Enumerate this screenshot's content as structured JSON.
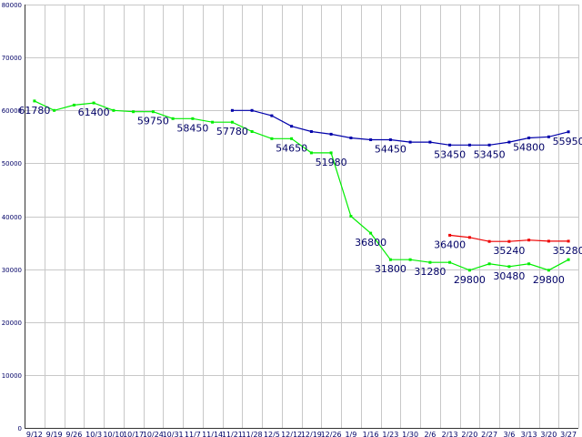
{
  "chart_data": {
    "type": "line",
    "title": "",
    "xlabel": "",
    "ylabel": "",
    "ylim": [
      0,
      80000
    ],
    "yticks": [
      0,
      10000,
      20000,
      30000,
      40000,
      50000,
      60000,
      70000,
      80000
    ],
    "grid": true,
    "categories": [
      "9/12",
      "9/19",
      "9/26",
      "10/3",
      "10/10",
      "10/17",
      "10/24",
      "10/31",
      "11/7",
      "11/14",
      "11/21",
      "11/28",
      "12/5",
      "12/12",
      "12/19",
      "12/26",
      "1/9",
      "1/16",
      "1/23",
      "1/30",
      "2/6",
      "2/13",
      "2/20",
      "2/27",
      "3/6",
      "3/13",
      "3/20",
      "3/27"
    ],
    "series": [
      {
        "color": "#00ee00",
        "values": [
          61780,
          60000,
          61000,
          61400,
          60000,
          59750,
          59750,
          58450,
          58450,
          57780,
          57780,
          56000,
          54650,
          54650,
          51980,
          51980,
          40000,
          36800,
          31800,
          31800,
          31280,
          31280,
          29800,
          31000,
          30480,
          31000,
          29800,
          31800
        ]
      },
      {
        "color": "#0000aa",
        "values": [
          null,
          null,
          null,
          null,
          null,
          null,
          null,
          null,
          null,
          null,
          60000,
          60000,
          59000,
          57000,
          56000,
          55500,
          54800,
          54450,
          54450,
          54000,
          54000,
          53450,
          53450,
          53450,
          54000,
          54800,
          55000,
          55950
        ]
      },
      {
        "color": "#ee0000",
        "values": [
          null,
          null,
          null,
          null,
          null,
          null,
          null,
          null,
          null,
          null,
          null,
          null,
          null,
          null,
          null,
          null,
          null,
          null,
          null,
          null,
          null,
          36400,
          36000,
          35240,
          35240,
          35500,
          35280,
          35280
        ]
      }
    ],
    "annotations": [
      {
        "text": "61780",
        "x": "9/12",
        "y": 61780,
        "series": 0
      },
      {
        "text": "61400",
        "x": "10/3",
        "y": 61400,
        "series": 0
      },
      {
        "text": "59750",
        "x": "10/24",
        "y": 59750,
        "series": 0
      },
      {
        "text": "58450",
        "x": "11/7",
        "y": 58450,
        "series": 0
      },
      {
        "text": "57780",
        "x": "11/21",
        "y": 57780,
        "series": 0
      },
      {
        "text": "54650",
        "x": "12/12",
        "y": 54650,
        "series": 0
      },
      {
        "text": "51980",
        "x": "12/26",
        "y": 51980,
        "series": 0
      },
      {
        "text": "36800",
        "x": "1/16",
        "y": 36800,
        "series": 0
      },
      {
        "text": "31800",
        "x": "1/23",
        "y": 31800,
        "series": 0
      },
      {
        "text": "31280",
        "x": "2/6",
        "y": 31280,
        "series": 0
      },
      {
        "text": "29800",
        "x": "2/20",
        "y": 29800,
        "series": 0
      },
      {
        "text": "30480",
        "x": "3/6",
        "y": 30480,
        "series": 0
      },
      {
        "text": "29800",
        "x": "3/20",
        "y": 29800,
        "series": 0
      },
      {
        "text": "54450",
        "x": "1/23",
        "y": 54450,
        "series": 1
      },
      {
        "text": "53450",
        "x": "2/13",
        "y": 53450,
        "series": 1
      },
      {
        "text": "53450",
        "x": "2/27",
        "y": 53450,
        "series": 1
      },
      {
        "text": "54800",
        "x": "3/13",
        "y": 54800,
        "series": 1
      },
      {
        "text": "55950",
        "x": "3/27",
        "y": 55950,
        "series": 1
      },
      {
        "text": "36400",
        "x": "2/13",
        "y": 36400,
        "series": 2
      },
      {
        "text": "35240",
        "x": "3/6",
        "y": 35240,
        "series": 2
      },
      {
        "text": "35280",
        "x": "3/27",
        "y": 35280,
        "series": 2
      }
    ]
  }
}
